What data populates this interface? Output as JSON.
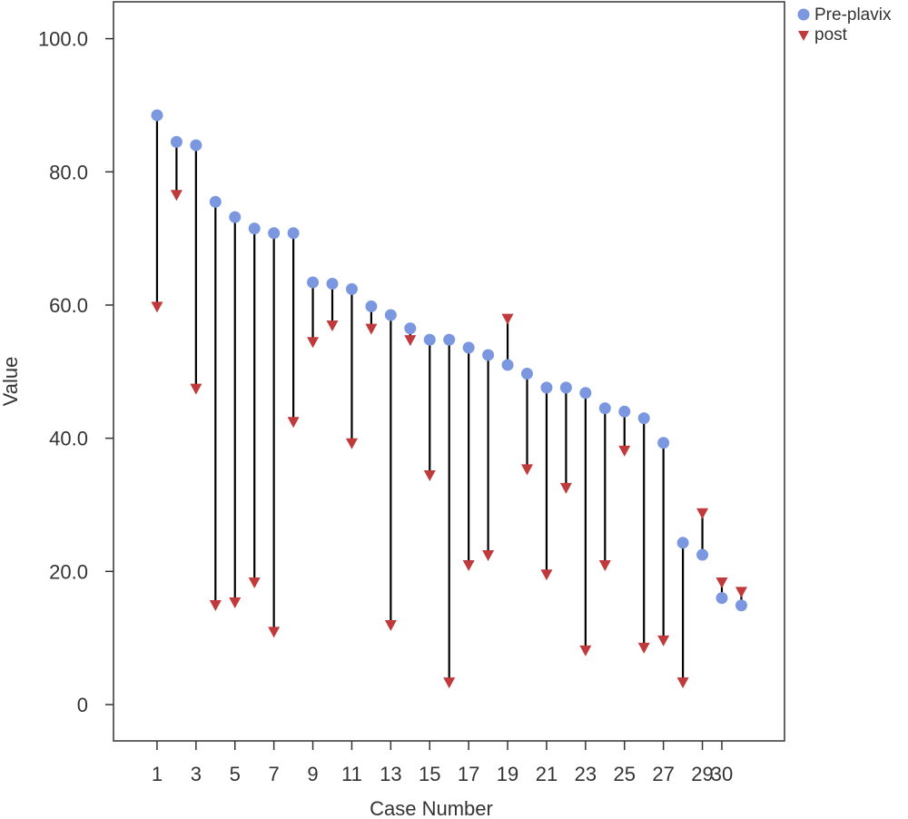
{
  "chart_data": {
    "type": "scatter",
    "xlabel": "Case Number",
    "ylabel": "Value",
    "ylim": [
      -5,
      105
    ],
    "y_ticks": [
      {
        "value": 100,
        "label": "100.0"
      },
      {
        "value": 80,
        "label": "80.0"
      },
      {
        "value": 60,
        "label": "60.0"
      },
      {
        "value": 40,
        "label": "40.0"
      },
      {
        "value": 20,
        "label": "20.0"
      },
      {
        "value": 0,
        "label": "0"
      }
    ],
    "x_tick_labels": [
      "1",
      "3",
      "5",
      "7",
      "9",
      "11",
      "13",
      "15",
      "17",
      "19",
      "21",
      "23",
      "25",
      "27",
      "29",
      "30"
    ],
    "x_tick_cases": [
      1,
      3,
      5,
      7,
      9,
      11,
      13,
      15,
      17,
      19,
      21,
      23,
      25,
      27,
      29,
      30
    ],
    "cases": [
      1,
      2,
      3,
      4,
      5,
      6,
      7,
      8,
      9,
      10,
      11,
      12,
      13,
      14,
      15,
      16,
      17,
      18,
      19,
      20,
      21,
      22,
      23,
      24,
      25,
      26,
      27,
      28,
      29,
      30
    ],
    "legend_position": "top-right",
    "series": [
      {
        "name": "Pre-plavix",
        "marker": "circle",
        "color": "#7b97e0",
        "values": [
          88.5,
          84.5,
          84.0,
          75.5,
          73.2,
          71.5,
          70.8,
          70.8,
          63.4,
          63.2,
          62.4,
          59.8,
          58.5,
          56.5,
          54.8,
          54.8,
          53.6,
          52.5,
          51.0,
          49.7,
          47.6,
          47.6,
          46.8,
          44.5,
          44.0,
          43.0,
          39.3,
          24.3,
          22.5,
          16.0
        ]
      },
      {
        "name": "post",
        "marker": "triangle-down",
        "color": "#c0393b",
        "values": [
          59.8,
          76.6,
          47.5,
          15.0,
          15.4,
          18.4,
          11.0,
          42.5,
          54.5,
          57.0,
          39.3,
          56.5,
          12.0,
          54.8,
          34.5,
          3.4,
          21.0,
          22.5,
          58.0,
          35.4,
          19.6,
          32.6,
          8.2,
          21.0,
          38.2,
          8.6,
          9.7,
          3.4,
          28.8,
          18.4
        ]
      }
    ],
    "extra_point": {
      "series": "Pre-plavix",
      "pre": 14.9,
      "post": 17.0
    },
    "colors": {
      "connector": "#000000",
      "frame": "#333333"
    }
  }
}
